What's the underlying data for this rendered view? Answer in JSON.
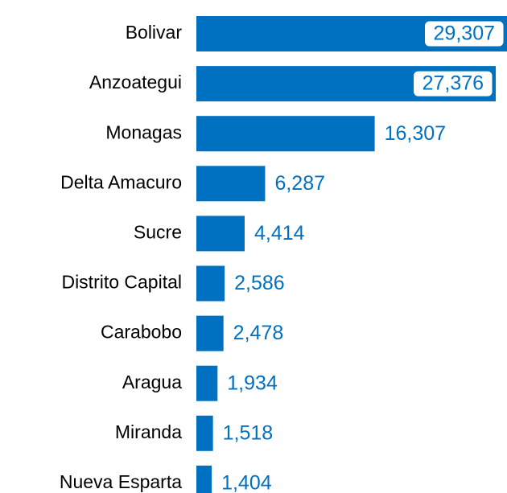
{
  "chart_data": {
    "type": "bar",
    "orientation": "horizontal",
    "categories": [
      "Bolivar",
      "Anzoategui",
      "Monagas",
      "Delta Amacuro",
      "Sucre",
      "Distrito Capital",
      "Carabobo",
      "Aragua",
      "Miranda",
      "Nueva Esparta"
    ],
    "values": [
      29307,
      27376,
      16307,
      6287,
      4414,
      2586,
      2478,
      1934,
      1518,
      1404
    ],
    "value_labels": [
      "29,307",
      "27,376",
      "16,307",
      "6,287",
      "4,414",
      "2,586",
      "2,478",
      "1,934",
      "1,518",
      "1,404"
    ],
    "color": "#0070c0"
  }
}
